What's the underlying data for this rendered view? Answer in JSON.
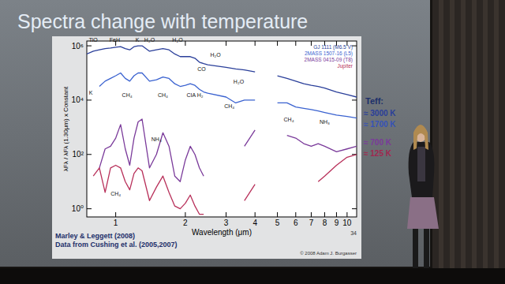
{
  "slide": {
    "title": "Spectra change with temperature",
    "credit": "Marley & Leggett (2008)",
    "data_credit": "Data from Cushing et al. (2005,2007)",
    "copyright": "© 2008 Adam J. Burgasser",
    "page": "34",
    "teff_header": "Teff:",
    "teff_labels": [
      {
        "text": "≈ 3000 K",
        "color": "#2a3f9a"
      },
      {
        "text": "≈ 1700 K",
        "color": "#3552b8"
      },
      {
        "text": "≈ 700 K",
        "color": "#7a3a9a"
      },
      {
        "text": "≈ 125 K",
        "color": "#a02850"
      }
    ]
  },
  "chart_data": {
    "type": "line",
    "x_label": "Wavelength (μm)",
    "y_label": "λFλ / λFλ (1.30μm) x Constant",
    "x": [
      0.75,
      0.8,
      0.85,
      0.9,
      0.95,
      1.0,
      1.05,
      1.1,
      1.15,
      1.2,
      1.25,
      1.3,
      1.4,
      1.5,
      1.6,
      1.7,
      1.8,
      1.9,
      2.0,
      2.1,
      2.2,
      2.3,
      2.4,
      2.5,
      3.0,
      3.3,
      3.6,
      4.0,
      4.5,
      5.0,
      5.5,
      6.0,
      6.5,
      7.0,
      7.5,
      8.0,
      9.0,
      10.0,
      11.0
    ],
    "series": [
      {
        "name": "GJ 1111 (M6.5 V)",
        "color": "#2a3f9a",
        "values": [
          500000.0,
          630000.0,
          710000.0,
          790000.0,
          830000.0,
          890000.0,
          930000.0,
          790000.0,
          710000.0,
          930000.0,
          1000000.0,
          1000000.0,
          630000.0,
          710000.0,
          790000.0,
          710000.0,
          500000.0,
          400000.0,
          400000.0,
          400000.0,
          350000.0,
          250000.0,
          220000.0,
          200000.0,
          160000.0,
          140000.0,
          130000.0,
          110000.0,
          null,
          79000.0,
          63000.0,
          50000.0,
          40000.0,
          35000.0,
          32000.0,
          28000.0,
          20000.0,
          16000.0,
          13000.0
        ]
      },
      {
        "name": "2MASS 1507-16 (L5)",
        "color": "#3a62d0",
        "values": [
          null,
          null,
          32000.0,
          50000.0,
          63000.0,
          79000.0,
          100000.0,
          63000.0,
          50000.0,
          79000.0,
          100000.0,
          100000.0,
          50000.0,
          56000.0,
          71000.0,
          63000.0,
          40000.0,
          32000.0,
          35000.0,
          40000.0,
          35000.0,
          25000.0,
          20000.0,
          18000.0,
          13000.0,
          7900.0,
          10000.0,
          10000.0,
          null,
          7900.0,
          7900.0,
          5600.0,
          5000.0,
          4500.0,
          4000.0,
          3500.0,
          2800.0,
          2500.0,
          2200.0
        ]
      },
      {
        "name": "2MASS 0415-09 (T8)",
        "color": "#7a3a9a",
        "values": [
          null,
          null,
          32,
          160,
          200,
          400,
          1260,
          160,
          40,
          400,
          1580,
          2000,
          32,
          100,
          630,
          200,
          16,
          10,
          63,
          200,
          100,
          32,
          16,
          null,
          null,
          null,
          200,
          790,
          null,
          null,
          500,
          400,
          250,
          200,
          250,
          200,
          126,
          160,
          200
        ]
      },
      {
        "name": "Jupiter",
        "color": "#b8305a",
        "values": [
          null,
          16,
          32,
          4,
          32,
          40,
          32,
          10,
          5,
          20,
          32,
          25,
          2,
          6.3,
          16,
          4,
          1.26,
          1,
          1.6,
          3.2,
          1.26,
          0.63,
          0.63,
          null,
          null,
          null,
          2,
          7.9,
          null,
          null,
          null,
          null,
          null,
          null,
          10,
          16,
          40,
          79,
          100
        ]
      }
    ],
    "xlim": [
      0.75,
      11
    ],
    "xticks": [
      1,
      2,
      3,
      4,
      5,
      6,
      7,
      8,
      9,
      10
    ],
    "ylim": [
      0.5,
      1500000.0
    ],
    "yticks": [
      {
        "value": 1,
        "label": "10⁰"
      },
      {
        "value": 100,
        "label": "10²"
      },
      {
        "value": 10000,
        "label": "10⁴"
      },
      {
        "value": 1000000,
        "label": "10⁶"
      }
    ],
    "log": true,
    "grid": false,
    "legend": "upper right",
    "annotations": [
      {
        "text": "TiO",
        "x": 0.8,
        "y": 1400000.0
      },
      {
        "text": "FeH",
        "x": 0.99,
        "y": 1400000.0
      },
      {
        "text": "K",
        "x": 1.24,
        "y": 1400000.0
      },
      {
        "text": "H₂O",
        "x": 1.4,
        "y": 1400000.0
      },
      {
        "text": "H₂O",
        "x": 1.85,
        "y": 1400000.0
      },
      {
        "text": "H₂O",
        "x": 2.7,
        "y": 400000.0
      },
      {
        "text": "CO",
        "x": 2.35,
        "y": 120000.0
      },
      {
        "text": "H₂O",
        "x": 3.4,
        "y": 40000.0
      },
      {
        "text": "K",
        "x": 0.78,
        "y": 16000.0
      },
      {
        "text": "CH₄",
        "x": 1.12,
        "y": 13000.0
      },
      {
        "text": "CH₄",
        "x": 1.6,
        "y": 13000.0
      },
      {
        "text": "CIA H₂",
        "x": 2.2,
        "y": 13000.0
      },
      {
        "text": "CH₄",
        "x": 3.1,
        "y": 5000.0
      },
      {
        "text": "CH₄",
        "x": 5.6,
        "y": 1600.0
      },
      {
        "text": "NH₃",
        "x": 8.0,
        "y": 1300.0
      },
      {
        "text": "CH₄",
        "x": 1.0,
        "y": 3
      },
      {
        "text": "NH₃",
        "x": 1.5,
        "y": 300
      }
    ]
  }
}
